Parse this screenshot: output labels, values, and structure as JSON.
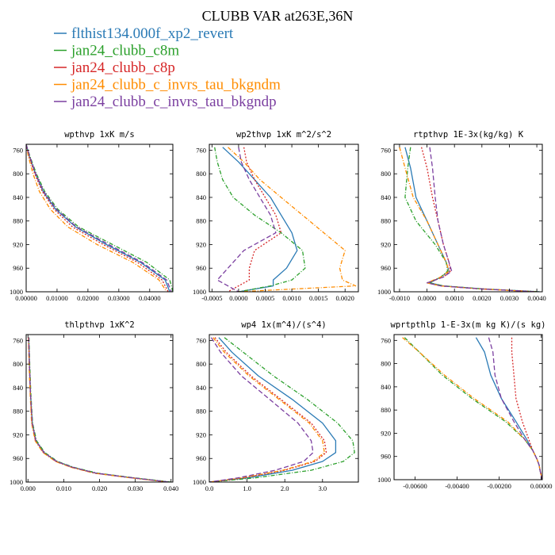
{
  "figure": {
    "title": "CLUBB VAR at263E,36N"
  },
  "legend": [
    {
      "label": "flthist134.000f_xp2_revert",
      "color": "#2a7ab5"
    },
    {
      "label": "jan24_clubb_c8m",
      "color": "#2ca02c"
    },
    {
      "label": "jan24_clubb_c8p",
      "color": "#d62728"
    },
    {
      "label": "jan24_clubb_c_invrs_tau_bkgndm",
      "color": "#ff8c00"
    },
    {
      "label": "jan24_clubb_c_invrs_tau_bkgndp",
      "color": "#7b3fa0"
    }
  ],
  "chart_data": [
    {
      "type": "line",
      "title": "wpthvp  1xK m/s",
      "xlim": [
        0,
        0.0475
      ],
      "ylim": [
        1000,
        750
      ],
      "y": [
        750,
        770,
        800,
        830,
        860,
        890,
        920,
        950,
        980,
        1000
      ],
      "xticks": [
        {
          "v": 0,
          "t": "0.00000"
        },
        {
          "v": 0.01,
          "t": "0.01000"
        },
        {
          "v": 0.02,
          "t": "0.02000"
        },
        {
          "v": 0.03,
          "t": "0.03000"
        },
        {
          "v": 0.04,
          "t": "0.04000"
        }
      ],
      "yticks": [
        760,
        800,
        840,
        880,
        920,
        960,
        1000
      ],
      "series": [
        {
          "color": "#2a7ab5",
          "dash": "",
          "values": [
            0.0,
            0.001,
            0.003,
            0.0055,
            0.0095,
            0.016,
            0.026,
            0.037,
            0.045,
            0.0465
          ]
        },
        {
          "color": "#2ca02c",
          "dash": "5,2,1,2",
          "values": [
            0.0,
            0.0012,
            0.0033,
            0.006,
            0.0102,
            0.017,
            0.028,
            0.039,
            0.0465,
            0.0475
          ]
        },
        {
          "color": "#d62728",
          "dash": "2,2",
          "values": [
            0.0,
            0.0009,
            0.0028,
            0.0052,
            0.009,
            0.015,
            0.025,
            0.036,
            0.044,
            0.046
          ]
        },
        {
          "color": "#ff8c00",
          "dash": "5,2,1,2",
          "values": [
            0.0,
            0.0007,
            0.0022,
            0.0043,
            0.0078,
            0.0135,
            0.023,
            0.0345,
            0.043,
            0.0455
          ]
        },
        {
          "color": "#7b3fa0",
          "dash": "6,3",
          "values": [
            0.0,
            0.0011,
            0.0031,
            0.0057,
            0.0098,
            0.0163,
            0.0268,
            0.0375,
            0.0455,
            0.047
          ]
        }
      ]
    },
    {
      "type": "line",
      "title": "wp2thvp  1xK m^2/s^2",
      "xlim": [
        -0.00055,
        0.00225
      ],
      "ylim": [
        1000,
        750
      ],
      "y": [
        755,
        780,
        810,
        840,
        870,
        900,
        930,
        960,
        980,
        990,
        1000
      ],
      "xticks": [
        {
          "v": -0.0005,
          "t": "-0.0005"
        },
        {
          "v": 0,
          "t": "0.0000"
        },
        {
          "v": 0.0005,
          "t": "0.0005"
        },
        {
          "v": 0.001,
          "t": "0.0010"
        },
        {
          "v": 0.0015,
          "t": "0.0015"
        },
        {
          "v": 0.002,
          "t": "0.0020"
        }
      ],
      "yticks": [
        760,
        800,
        840,
        880,
        920,
        960,
        1000
      ],
      "series": [
        {
          "color": "#2a7ab5",
          "dash": "",
          "values": [
            -0.0003,
            0.0,
            0.0003,
            0.0006,
            0.0008,
            0.001,
            0.0011,
            0.0009,
            0.00065,
            0.00065,
            0.0
          ]
        },
        {
          "color": "#2ca02c",
          "dash": "5,2,1,2",
          "values": [
            -0.00045,
            -0.0004,
            -0.0003,
            -0.0001,
            0.0003,
            0.0008,
            0.0012,
            0.00125,
            0.001,
            0.0006,
            0.0
          ]
        },
        {
          "color": "#d62728",
          "dash": "2,2",
          "values": [
            0.0001,
            0.00015,
            0.0003,
            0.0005,
            0.0007,
            0.0008,
            0.0003,
            0.0002,
            0.0002,
            0.0,
            -0.0002
          ]
        },
        {
          "color": "#ff8c00",
          "dash": "5,2,1,2",
          "values": [
            -0.0002,
            0.0001,
            0.0004,
            0.0008,
            0.0012,
            0.0016,
            0.002,
            0.0019,
            0.00195,
            0.0022,
            0.0
          ]
        },
        {
          "color": "#7b3fa0",
          "dash": "6,3",
          "values": [
            0.0,
            5e-05,
            0.0002,
            0.0004,
            0.0006,
            0.0007,
            0.0001,
            -0.0002,
            -0.0004,
            -0.0002,
            0.0
          ]
        }
      ]
    },
    {
      "type": "line",
      "title": "rtpthvp  1E-3x(kg/kg) K",
      "xlim": [
        -0.0012,
        0.0042
      ],
      "ylim": [
        1000,
        750
      ],
      "y": [
        755,
        790,
        840,
        880,
        920,
        950,
        965,
        975,
        985,
        990,
        995,
        1000
      ],
      "xticks": [
        {
          "v": -0.001,
          "t": "-0.0010"
        },
        {
          "v": 0,
          "t": "0.0000"
        },
        {
          "v": 0.001,
          "t": "0.0010"
        },
        {
          "v": 0.002,
          "t": "0.0020"
        },
        {
          "v": 0.003,
          "t": "0.0030"
        },
        {
          "v": 0.004,
          "t": "0.0040"
        }
      ],
      "yticks": [
        760,
        800,
        840,
        880,
        920,
        960,
        1000
      ],
      "series": [
        {
          "color": "#2a7ab5",
          "dash": "",
          "values": [
            -0.0008,
            -0.0006,
            -0.0004,
            0.0,
            0.0004,
            0.0007,
            0.0008,
            0.0005,
            0.0001,
            0.0006,
            0.002,
            0.0041
          ]
        },
        {
          "color": "#2ca02c",
          "dash": "5,2,1,2",
          "values": [
            -0.0006,
            -0.0007,
            -0.0008,
            -0.0004,
            0.0003,
            0.0007,
            0.00075,
            0.0005,
            0.0001,
            0.0006,
            0.002,
            0.0041
          ]
        },
        {
          "color": "#d62728",
          "dash": "2,2",
          "values": [
            -0.0002,
            0.0,
            0.0002,
            0.0004,
            0.0006,
            0.0008,
            0.00085,
            0.0006,
            0.0,
            0.0005,
            0.0019,
            0.004
          ]
        },
        {
          "color": "#ff8c00",
          "dash": "5,2,1,2",
          "values": [
            -0.001,
            -0.0008,
            -0.0005,
            0.0,
            0.0004,
            0.0007,
            0.0008,
            0.0005,
            0.0,
            0.0005,
            0.0019,
            0.004
          ]
        },
        {
          "color": "#7b3fa0",
          "dash": "6,3",
          "values": [
            0.0001,
            0.0002,
            0.0003,
            0.0004,
            0.0006,
            0.0008,
            0.0009,
            0.0006,
            0.0,
            0.0005,
            0.0019,
            0.004
          ]
        }
      ]
    },
    {
      "type": "line",
      "title": "thlpthvp  1xK^2",
      "xlim": [
        -0.0005,
        0.0405
      ],
      "ylim": [
        1000,
        750
      ],
      "y": [
        755,
        800,
        850,
        900,
        930,
        950,
        965,
        975,
        985,
        992,
        1000
      ],
      "xticks": [
        {
          "v": 0,
          "t": "0.000"
        },
        {
          "v": 0.01,
          "t": "0.010"
        },
        {
          "v": 0.02,
          "t": "0.020"
        },
        {
          "v": 0.03,
          "t": "0.030"
        },
        {
          "v": 0.04,
          "t": "0.040"
        }
      ],
      "yticks": [
        760,
        800,
        840,
        880,
        920,
        960,
        1000
      ],
      "series": [
        {
          "color": "#2a7ab5",
          "dash": "",
          "values": [
            0.0002,
            0.0004,
            0.0007,
            0.0012,
            0.0022,
            0.0045,
            0.008,
            0.0125,
            0.019,
            0.028,
            0.0395
          ]
        },
        {
          "color": "#2ca02c",
          "dash": "5,2,1,2",
          "values": [
            0.0003,
            0.0005,
            0.0008,
            0.0013,
            0.0024,
            0.0047,
            0.0083,
            0.0128,
            0.0195,
            0.0285,
            0.04
          ]
        },
        {
          "color": "#d62728",
          "dash": "2,2",
          "values": [
            0.0002,
            0.0004,
            0.0007,
            0.0011,
            0.0021,
            0.0043,
            0.0078,
            0.0122,
            0.0187,
            0.0277,
            0.039
          ]
        },
        {
          "color": "#ff8c00",
          "dash": "5,2,1,2",
          "values": [
            0.0001,
            0.0003,
            0.0006,
            0.001,
            0.002,
            0.0042,
            0.0077,
            0.012,
            0.0185,
            0.0275,
            0.039
          ]
        },
        {
          "color": "#7b3fa0",
          "dash": "6,3",
          "values": [
            0.0002,
            0.0004,
            0.0007,
            0.0012,
            0.0022,
            0.0045,
            0.008,
            0.0125,
            0.019,
            0.028,
            0.0395
          ]
        }
      ]
    },
    {
      "type": "line",
      "title": "wp4  1x(m^4)/(s^4)",
      "xlim": [
        0,
        3.95
      ],
      "ylim": [
        1000,
        750
      ],
      "y": [
        755,
        780,
        820,
        860,
        900,
        930,
        950,
        965,
        980,
        993,
        1000
      ],
      "xticks": [
        {
          "v": 0,
          "t": "0.0"
        },
        {
          "v": 1,
          "t": "1.0"
        },
        {
          "v": 2,
          "t": "2.0"
        },
        {
          "v": 3,
          "t": "3.0"
        }
      ],
      "yticks": [
        760,
        800,
        840,
        880,
        920,
        960,
        1000
      ],
      "series": [
        {
          "color": "#2a7ab5",
          "dash": "",
          "values": [
            0.25,
            0.6,
            1.3,
            2.2,
            3.0,
            3.35,
            3.35,
            3.0,
            2.2,
            1.0,
            0.0
          ]
        },
        {
          "color": "#2ca02c",
          "dash": "5,2,1,2",
          "values": [
            0.4,
            0.9,
            1.7,
            2.6,
            3.4,
            3.8,
            3.85,
            3.55,
            2.7,
            1.2,
            0.0
          ]
        },
        {
          "color": "#d62728",
          "dash": "2,2",
          "values": [
            0.15,
            0.45,
            1.1,
            1.9,
            2.7,
            3.05,
            3.1,
            2.8,
            2.0,
            0.9,
            0.0
          ]
        },
        {
          "color": "#ff8c00",
          "dash": "5,2,1,2",
          "values": [
            0.1,
            0.4,
            1.05,
            1.85,
            2.65,
            3.0,
            3.05,
            2.75,
            1.95,
            0.85,
            0.0
          ]
        },
        {
          "color": "#7b3fa0",
          "dash": "6,3",
          "values": [
            0.05,
            0.3,
            0.85,
            1.6,
            2.35,
            2.7,
            2.75,
            2.5,
            1.75,
            0.75,
            0.0
          ]
        }
      ]
    },
    {
      "type": "line",
      "title": "wprtpthlp  1-E-3x(m kg K)/(s kg)",
      "xlim": [
        -0.007,
        5e-05
      ],
      "ylim": [
        1000,
        750
      ],
      "y": [
        755,
        780,
        820,
        860,
        900,
        930,
        950,
        965,
        975,
        985,
        993,
        1000
      ],
      "xticks": [
        {
          "v": -0.006,
          "t": "-0.00600"
        },
        {
          "v": -0.004,
          "t": "-0.00400"
        },
        {
          "v": -0.002,
          "t": "-0.00200"
        },
        {
          "v": 0,
          "t": "0.00000"
        }
      ],
      "yticks": [
        760,
        800,
        840,
        880,
        920,
        960,
        1000
      ],
      "series": [
        {
          "color": "#2a7ab5",
          "dash": "",
          "values": [
            -0.0031,
            -0.0027,
            -0.0024,
            -0.0019,
            -0.0012,
            -0.0007,
            -0.0004,
            -0.0002,
            -0.0001,
            -5e-05,
            0.0,
            0.0
          ]
        },
        {
          "color": "#2ca02c",
          "dash": "5,2,1,2",
          "values": [
            -0.0065,
            -0.0058,
            -0.0047,
            -0.0033,
            -0.0017,
            -0.0008,
            -0.0004,
            -0.0002,
            -0.0001,
            -5e-05,
            0.0,
            0.0
          ]
        },
        {
          "color": "#d62728",
          "dash": "2,2",
          "values": [
            -0.0014,
            -0.0014,
            -0.0013,
            -0.0012,
            -0.0009,
            -0.0006,
            -0.0004,
            -0.0002,
            -0.0001,
            -5e-05,
            0.0,
            0.0
          ]
        },
        {
          "color": "#ff8c00",
          "dash": "5,2,1,2",
          "values": [
            -0.0066,
            -0.0058,
            -0.0046,
            -0.0032,
            -0.0016,
            -0.0008,
            -0.0004,
            -0.0002,
            -0.0001,
            -5e-05,
            0.0,
            0.0
          ]
        },
        {
          "color": "#7b3fa0",
          "dash": "6,3",
          "values": [
            -0.0025,
            -0.0023,
            -0.0022,
            -0.0019,
            -0.0013,
            -0.0008,
            -0.0004,
            -0.0002,
            -0.0001,
            -5e-05,
            0.0,
            0.0
          ]
        }
      ]
    }
  ]
}
